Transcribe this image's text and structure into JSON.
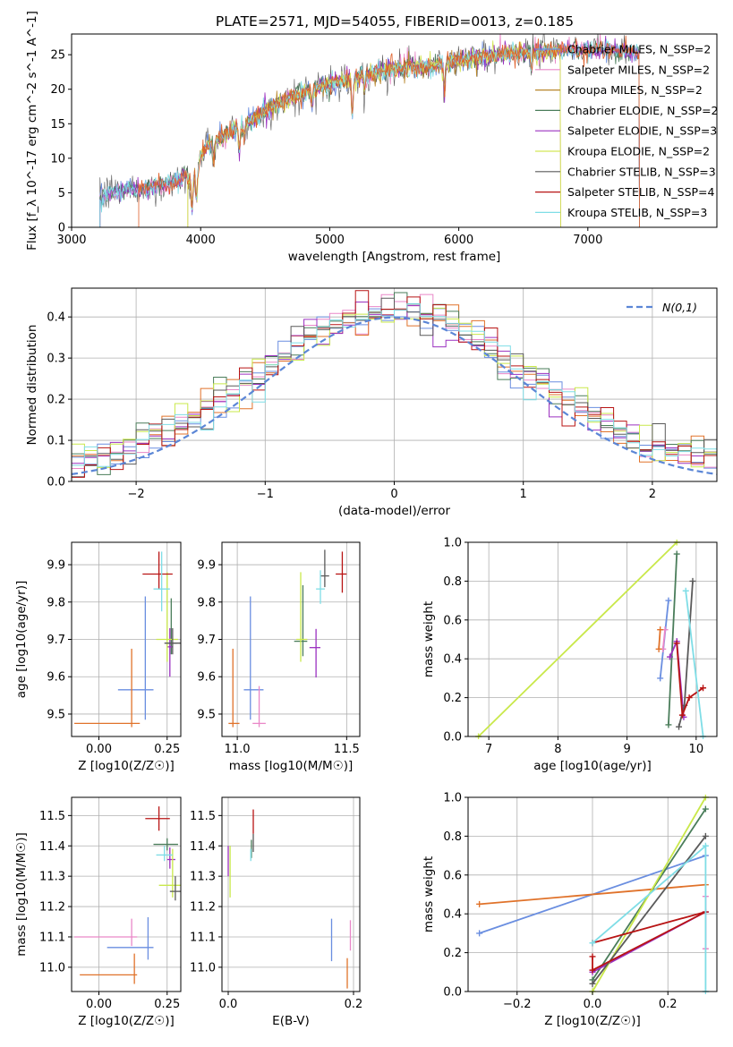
{
  "figure": {
    "title": "PLATE=2571, MJD=54055, FIBERID=0013, z=0.185"
  },
  "legend_names": [
    "Chabrier MILES, N_SSP=2",
    "Salpeter MILES, N_SSP=2",
    "Kroupa MILES, N_SSP=2",
    "Chabrier ELODIE, N_SSP=2",
    "Salpeter ELODIE, N_SSP=3",
    "Kroupa ELODIE, N_SSP=2",
    "Chabrier STELIB, N_SSP=3",
    "Salpeter STELIB, N_SSP=4",
    "Kroupa STELIB, N_SSP=3"
  ],
  "colors": [
    "#6a8ee0",
    "#e987c8",
    "#b8862a",
    "#4a7d5a",
    "#9b30c0",
    "#d4e657",
    "#5a5a5a",
    "#b81414",
    "#7fdde6"
  ],
  "panel_colors": [
    "#6a8ee0",
    "#e987c8",
    "#e0722a",
    "#4a7d5a",
    "#9b30c0",
    "#c9e84a",
    "#5a5a5a",
    "#b81414",
    "#7fdde6"
  ],
  "chart_data": [
    {
      "type": "line",
      "panel": "spectrum",
      "xlabel": "wavelength [Angstrom, rest frame]",
      "ylabel": "Flux [f_λ 10^-17 erg cm^-2 s^-1 A^-1]",
      "xlim": [
        3000,
        8000
      ],
      "ylim": [
        0,
        28
      ],
      "xticks": [
        "3000",
        "4000",
        "5000",
        "6000",
        "7000"
      ],
      "yticks": [
        "0",
        "5",
        "10",
        "15",
        "20",
        "25"
      ],
      "continuum": [
        [
          3220,
          4.0
        ],
        [
          3300,
          5.2
        ],
        [
          3500,
          5.5
        ],
        [
          3800,
          6.5
        ],
        [
          3950,
          8.5
        ],
        [
          4050,
          11.8
        ],
        [
          4300,
          14.5
        ],
        [
          4600,
          18.0
        ],
        [
          4900,
          20.2
        ],
        [
          5200,
          21.8
        ],
        [
          5500,
          23.0
        ],
        [
          5800,
          23.4
        ],
        [
          6100,
          24.6
        ],
        [
          6400,
          25.2
        ],
        [
          6700,
          25.5
        ],
        [
          7000,
          25.8
        ],
        [
          7200,
          25.6
        ],
        [
          7400,
          25.4
        ]
      ],
      "absorption_lines": [
        [
          3934,
          4.5
        ],
        [
          3968,
          4.0
        ],
        [
          4102,
          2.5
        ],
        [
          4300,
          3.5
        ],
        [
          4340,
          2.0
        ],
        [
          4861,
          2.0
        ],
        [
          5175,
          5.5
        ],
        [
          5270,
          2.0
        ],
        [
          5890,
          4.0
        ],
        [
          6563,
          2.5
        ]
      ],
      "series_ranges": [
        [
          3220,
          7400
        ],
        [
          3220,
          7400
        ],
        [
          3900,
          6790
        ],
        [
          3220,
          7400
        ],
        [
          3220,
          7400
        ],
        [
          3900,
          6790
        ],
        [
          3220,
          7400
        ],
        [
          3520,
          7400
        ],
        [
          3220,
          7400
        ]
      ],
      "grid": false,
      "legend": "right"
    },
    {
      "type": "line",
      "panel": "residual-histogram",
      "xlabel": "(data-model)/error",
      "ylabel": "Normed distribution",
      "xlim": [
        -2.5,
        2.5
      ],
      "ylim": [
        0,
        0.47
      ],
      "xticks": [
        "−2",
        "−1",
        "0",
        "1",
        "2"
      ],
      "yticks": [
        "0.0",
        "0.1",
        "0.2",
        "0.3",
        "0.4"
      ],
      "bin_width": 0.1,
      "normal_curve": {
        "name": "N(0,1)",
        "mean": 0,
        "sigma": 1
      },
      "grid": true,
      "legend": "top-right"
    },
    {
      "type": "scatter",
      "panel": "age-vs-metallicity",
      "xlabel": "Z [log10(Z/Z☉)]",
      "ylabel": "age  [log10(age/yr)]",
      "xlim": [
        -0.1,
        0.3
      ],
      "ylim": [
        9.44,
        9.96
      ],
      "xticks": [
        "0.00",
        "0.25"
      ],
      "yticks": [
        "9.5",
        "9.6",
        "9.7",
        "9.8",
        "9.9"
      ],
      "points": [
        {
          "x": 0.17,
          "xerr": [
            0.1,
            0.03
          ],
          "y": 9.565,
          "yerr": [
            0.08,
            0.25
          ]
        },
        {
          "x": 0.18,
          "xerr": [
            0.0,
            0.0
          ],
          "y": 9.84,
          "yerr": [
            0.0,
            0.0
          ]
        },
        {
          "x": 0.12,
          "xerr": [
            0.21,
            0.03
          ],
          "y": 9.475,
          "yerr": [
            0.01,
            0.2
          ]
        },
        {
          "x": 0.265,
          "xerr": [
            0.02,
            0.02
          ],
          "y": 9.69,
          "yerr": [
            0.03,
            0.12
          ]
        },
        {
          "x": 0.26,
          "xerr": [
            0.01,
            0.01
          ],
          "y": 9.68,
          "yerr": [
            0.08,
            0.05
          ]
        },
        {
          "x": 0.25,
          "xerr": [
            0.04,
            0.04
          ],
          "y": 9.7,
          "yerr": [
            0.06,
            0.18
          ]
        },
        {
          "x": 0.27,
          "xerr": [
            0.03,
            0.03
          ],
          "y": 9.69,
          "yerr": [
            0.03,
            0.04
          ]
        },
        {
          "x": 0.22,
          "xerr": [
            0.06,
            0.05
          ],
          "y": 9.875,
          "yerr": [
            0.04,
            0.06
          ]
        },
        {
          "x": 0.23,
          "xerr": [
            0.03,
            0.03
          ],
          "y": 9.835,
          "yerr": [
            0.06,
            0.1
          ]
        }
      ],
      "grid": true
    },
    {
      "type": "scatter",
      "panel": "age-vs-mass",
      "xlabel": "mass [log10(M/M☉)]",
      "ylabel": "",
      "xlim": [
        10.93,
        11.56
      ],
      "ylim": [
        9.44,
        9.96
      ],
      "xticks": [
        "11.0",
        "11.5"
      ],
      "yticks": [
        "9.5",
        "9.6",
        "9.7",
        "9.8",
        "9.9"
      ],
      "points": [
        {
          "x": 11.06,
          "xerr": [
            0.03,
            0.06
          ],
          "y": 9.565,
          "yerr": [
            0.08,
            0.25
          ]
        },
        {
          "x": 11.1,
          "xerr": [
            0.03,
            0.03
          ],
          "y": 9.475,
          "yerr": [
            0.01,
            0.1
          ]
        },
        {
          "x": 10.98,
          "xerr": [
            0.02,
            0.03
          ],
          "y": 9.475,
          "yerr": [
            0.01,
            0.2
          ]
        },
        {
          "x": 11.3,
          "xerr": [
            0.04,
            0.02
          ],
          "y": 9.695,
          "yerr": [
            0.04,
            0.15
          ]
        },
        {
          "x": 11.36,
          "xerr": [
            0.03,
            0.02
          ],
          "y": 9.678,
          "yerr": [
            0.08,
            0.05
          ]
        },
        {
          "x": 11.29,
          "xerr": [
            0.02,
            0.03
          ],
          "y": 9.7,
          "yerr": [
            0.06,
            0.18
          ]
        },
        {
          "x": 11.4,
          "xerr": [
            0.02,
            0.02
          ],
          "y": 9.87,
          "yerr": [
            0.03,
            0.07
          ]
        },
        {
          "x": 11.48,
          "xerr": [
            0.03,
            0.02
          ],
          "y": 9.875,
          "yerr": [
            0.05,
            0.06
          ]
        },
        {
          "x": 11.38,
          "xerr": [
            0.02,
            0.02
          ],
          "y": 9.835,
          "yerr": [
            0.04,
            0.05
          ]
        }
      ],
      "grid": true
    },
    {
      "type": "line",
      "panel": "mass-weight-vs-age",
      "xlabel": "age  [log10(age/yr)]",
      "ylabel": "mass weight",
      "xlim": [
        6.7,
        10.3
      ],
      "ylim": [
        0,
        1
      ],
      "xticks": [
        "7",
        "8",
        "9",
        "10"
      ],
      "yticks": [
        "0.0",
        "0.2",
        "0.4",
        "0.6",
        "0.8",
        "1.0"
      ],
      "series": [
        {
          "points": [
            [
              9.48,
              0.3
            ],
            [
              9.6,
              0.7
            ]
          ]
        },
        {
          "points": [
            [
              9.52,
              0.45
            ],
            [
              9.55,
              0.55
            ]
          ]
        },
        {
          "points": [
            [
              9.46,
              0.45
            ],
            [
              9.48,
              0.55
            ]
          ]
        },
        {
          "points": [
            [
              9.6,
              0.06
            ],
            [
              9.72,
              0.94
            ]
          ]
        },
        {
          "points": [
            [
              9.62,
              0.41
            ],
            [
              9.72,
              0.49
            ],
            [
              9.82,
              0.1
            ]
          ]
        },
        {
          "points": [
            [
              6.85,
              0.0
            ],
            [
              9.72,
              1.0
            ]
          ]
        },
        {
          "points": [
            [
              9.75,
              0.05
            ],
            [
              9.83,
              0.16
            ],
            [
              9.95,
              0.8
            ]
          ]
        },
        {
          "points": [
            [
              9.72,
              0.48
            ],
            [
              9.8,
              0.11
            ],
            [
              9.9,
              0.2
            ],
            [
              10.1,
              0.25
            ]
          ]
        },
        {
          "points": [
            [
              9.85,
              0.75
            ],
            [
              10.1,
              0.0
            ]
          ]
        }
      ],
      "grid": true
    },
    {
      "type": "scatter",
      "panel": "mass-vs-metallicity",
      "xlabel": "Z [log10(Z/Z☉)]",
      "ylabel": "mass [log10(M/M☉)]",
      "xlim": [
        -0.1,
        0.3
      ],
      "ylim": [
        10.92,
        11.56
      ],
      "xticks": [
        "0.00",
        "0.25"
      ],
      "yticks": [
        "11.0",
        "11.1",
        "11.2",
        "11.3",
        "11.4",
        "11.5"
      ],
      "points": [
        {
          "x": 0.18,
          "xerr": [
            0.15,
            0.02
          ],
          "y": 11.065,
          "yerr": [
            0.04,
            0.1
          ]
        },
        {
          "x": 0.12,
          "xerr": [
            0.21,
            0.02
          ],
          "y": 11.1,
          "yerr": [
            0.03,
            0.06
          ]
        },
        {
          "x": 0.13,
          "xerr": [
            0.2,
            0.01
          ],
          "y": 10.975,
          "yerr": [
            0.03,
            0.07
          ]
        },
        {
          "x": 0.25,
          "xerr": [
            0.05,
            0.04
          ],
          "y": 11.405,
          "yerr": [
            0.02,
            0.02
          ]
        },
        {
          "x": 0.26,
          "xerr": [
            0.01,
            0.02
          ],
          "y": 11.355,
          "yerr": [
            0.03,
            0.04
          ]
        },
        {
          "x": 0.27,
          "xerr": [
            0.05,
            0.03
          ],
          "y": 11.27,
          "yerr": [
            0.04,
            0.12
          ]
        },
        {
          "x": 0.28,
          "xerr": [
            0.02,
            0.02
          ],
          "y": 11.25,
          "yerr": [
            0.03,
            0.05
          ]
        },
        {
          "x": 0.22,
          "xerr": [
            0.05,
            0.04
          ],
          "y": 11.49,
          "yerr": [
            0.04,
            0.04
          ]
        },
        {
          "x": 0.24,
          "xerr": [
            0.03,
            0.03
          ],
          "y": 11.37,
          "yerr": [
            0.02,
            0.03
          ]
        }
      ],
      "grid": true
    },
    {
      "type": "scatter",
      "panel": "mass-vs-extinction",
      "xlabel": "E(B-V)",
      "ylabel": "",
      "xlim": [
        -0.01,
        0.21
      ],
      "ylim": [
        10.92,
        11.56
      ],
      "xticks": [
        "0.0",
        "0.2"
      ],
      "yticks": [
        "11.0",
        "11.1",
        "11.2",
        "11.3",
        "11.4",
        "11.5"
      ],
      "points": [
        {
          "x": 0.165,
          "xerr": [
            0,
            0
          ],
          "y": 11.09,
          "yerr": [
            0.07,
            0.07
          ]
        },
        {
          "x": 0.195,
          "xerr": [
            0,
            0
          ],
          "y": 11.105,
          "yerr": [
            0.05,
            0.05
          ]
        },
        {
          "x": 0.19,
          "xerr": [
            0,
            0
          ],
          "y": 10.98,
          "yerr": [
            0.05,
            0.05
          ]
        },
        {
          "x": 0.037,
          "xerr": [
            0,
            0
          ],
          "y": 11.39,
          "yerr": [
            0.03,
            0.03
          ]
        },
        {
          "x": 0.0,
          "xerr": [
            0,
            0
          ],
          "y": 11.35,
          "yerr": [
            0.05,
            0.05
          ]
        },
        {
          "x": 0.003,
          "xerr": [
            0,
            0
          ],
          "y": 11.3,
          "yerr": [
            0.07,
            0.1
          ]
        },
        {
          "x": 0.04,
          "xerr": [
            0,
            0
          ],
          "y": 11.41,
          "yerr": [
            0.03,
            0.03
          ]
        },
        {
          "x": 0.04,
          "xerr": [
            0,
            0
          ],
          "y": 11.48,
          "yerr": [
            0.04,
            0.04
          ]
        },
        {
          "x": 0.036,
          "xerr": [
            0,
            0
          ],
          "y": 11.37,
          "yerr": [
            0.02,
            0.02
          ]
        }
      ],
      "grid": true
    },
    {
      "type": "line",
      "panel": "mass-weight-vs-metallicity",
      "xlabel": "Z [log10(Z/Z☉)]",
      "ylabel": "mass weight",
      "xlim": [
        -0.33,
        0.33
      ],
      "ylim": [
        0,
        1
      ],
      "xticks": [
        "−0.2",
        "0.0",
        "0.2"
      ],
      "yticks": [
        "0.0",
        "0.2",
        "0.4",
        "0.6",
        "0.8",
        "1.0"
      ],
      "series": [
        {
          "points": [
            [
              -0.3,
              0.3
            ],
            [
              0.3,
              0.7
            ]
          ]
        },
        {
          "points": [
            [
              0.3,
              0.49
            ],
            [
              0.3,
              0.22
            ]
          ]
        },
        {
          "points": [
            [
              -0.3,
              0.45
            ],
            [
              0.3,
              0.55
            ]
          ]
        },
        {
          "points": [
            [
              0.0,
              0.06
            ],
            [
              0.3,
              0.94
            ]
          ]
        },
        {
          "points": [
            [
              0.0,
              0.1
            ],
            [
              0.3,
              0.41
            ]
          ]
        },
        {
          "points": [
            [
              0.0,
              0.0
            ],
            [
              0.3,
              1.0
            ]
          ]
        },
        {
          "points": [
            [
              0.0,
              0.04
            ],
            [
              0.3,
              0.8
            ]
          ]
        },
        {
          "points": [
            [
              0.0,
              0.25
            ],
            [
              0.3,
              0.41
            ],
            [
              0.0,
              0.11
            ],
            [
              0.0,
              0.18
            ]
          ]
        },
        {
          "points": [
            [
              0.0,
              0.25
            ],
            [
              0.3,
              0.75
            ],
            [
              0.3,
              0.0
            ]
          ]
        }
      ],
      "grid": true
    }
  ]
}
